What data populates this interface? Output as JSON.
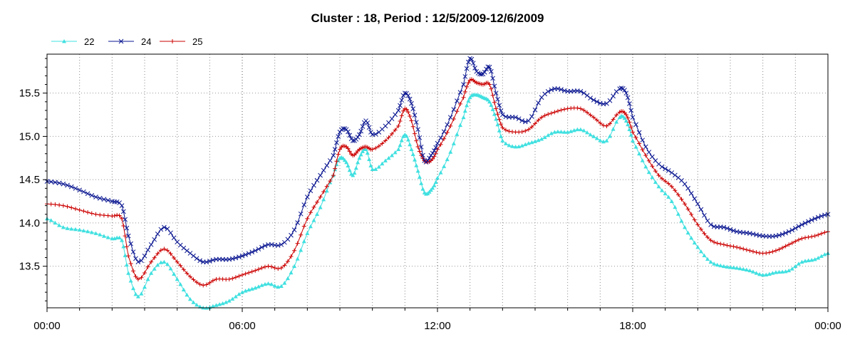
{
  "chart_data": {
    "type": "line",
    "title": "Cluster : 18, Period : 12/5/2009-12/6/2009",
    "xlabel": "",
    "ylabel": "",
    "x_ticks": [
      "00:00",
      "06:00",
      "12:00",
      "18:00",
      "00:00"
    ],
    "y_ticks": [
      "13.5",
      "14.0",
      "14.5",
      "15.0",
      "15.5"
    ],
    "xlim": [
      0,
      24
    ],
    "ylim": [
      13.02,
      15.95
    ],
    "grid": true,
    "legend_position": "top-left",
    "series": [
      {
        "name": "22",
        "color": "#40e0e0",
        "marker": "triangle",
        "x": [
          0,
          0.5,
          1,
          1.5,
          2,
          2.3,
          2.5,
          2.8,
          3.2,
          3.6,
          4,
          4.4,
          4.8,
          5.2,
          5.6,
          6,
          6.4,
          6.8,
          7.2,
          7.6,
          8,
          8.4,
          8.8,
          9,
          9.2,
          9.4,
          9.6,
          9.8,
          10,
          10.4,
          10.8,
          11,
          11.2,
          11.4,
          11.6,
          11.8,
          12,
          12.4,
          12.8,
          13,
          13.2,
          13.4,
          13.6,
          13.8,
          14,
          14.4,
          14.8,
          15.2,
          15.6,
          16,
          16.4,
          16.8,
          17.2,
          17.6,
          17.8,
          18,
          18.4,
          18.8,
          19.2,
          19.6,
          20,
          20.4,
          20.8,
          21.2,
          21.6,
          22,
          22.4,
          22.8,
          23.2,
          23.6,
          24
        ],
        "values": [
          14.05,
          13.95,
          13.92,
          13.88,
          13.82,
          13.8,
          13.42,
          13.15,
          13.42,
          13.55,
          13.35,
          13.12,
          13.02,
          13.05,
          13.1,
          13.2,
          13.25,
          13.3,
          13.27,
          13.5,
          13.88,
          14.18,
          14.55,
          14.75,
          14.7,
          14.55,
          14.75,
          14.85,
          14.62,
          14.72,
          14.85,
          15.02,
          14.85,
          14.6,
          14.35,
          14.38,
          14.52,
          14.82,
          15.22,
          15.45,
          15.48,
          15.45,
          15.4,
          15.2,
          14.95,
          14.88,
          14.92,
          14.97,
          15.05,
          15.05,
          15.08,
          15.0,
          14.95,
          15.22,
          15.18,
          14.95,
          14.65,
          14.42,
          14.25,
          13.95,
          13.72,
          13.55,
          13.5,
          13.48,
          13.45,
          13.4,
          13.43,
          13.45,
          13.55,
          13.58,
          13.65
        ]
      },
      {
        "name": "24",
        "color": "#0a1690",
        "marker": "cross",
        "x": [
          0,
          0.5,
          1,
          1.5,
          2,
          2.3,
          2.5,
          2.8,
          3.2,
          3.6,
          4,
          4.4,
          4.8,
          5.2,
          5.6,
          6,
          6.4,
          6.8,
          7.2,
          7.6,
          8,
          8.4,
          8.8,
          9,
          9.2,
          9.4,
          9.6,
          9.8,
          10,
          10.4,
          10.8,
          11,
          11.2,
          11.4,
          11.6,
          11.8,
          12,
          12.4,
          12.8,
          13,
          13.2,
          13.4,
          13.6,
          13.8,
          14,
          14.4,
          14.8,
          15.2,
          15.6,
          16,
          16.4,
          16.8,
          17.2,
          17.6,
          17.8,
          18,
          18.4,
          18.8,
          19.2,
          19.6,
          20,
          20.4,
          20.8,
          21.2,
          21.6,
          22,
          22.4,
          22.8,
          23.2,
          23.6,
          24
        ],
        "values": [
          14.48,
          14.45,
          14.38,
          14.3,
          14.25,
          14.2,
          13.85,
          13.55,
          13.75,
          13.95,
          13.78,
          13.65,
          13.55,
          13.58,
          13.58,
          13.62,
          13.68,
          13.75,
          13.75,
          13.92,
          14.3,
          14.55,
          14.78,
          15.05,
          15.08,
          14.95,
          15.02,
          15.18,
          15.02,
          15.12,
          15.3,
          15.5,
          15.38,
          15.08,
          14.72,
          14.78,
          14.92,
          15.22,
          15.6,
          15.9,
          15.75,
          15.72,
          15.8,
          15.5,
          15.25,
          15.22,
          15.18,
          15.45,
          15.55,
          15.52,
          15.52,
          15.42,
          15.38,
          15.55,
          15.5,
          15.22,
          14.88,
          14.68,
          14.58,
          14.45,
          14.22,
          13.98,
          13.95,
          13.9,
          13.88,
          13.85,
          13.85,
          13.9,
          13.98,
          14.05,
          14.1
        ]
      },
      {
        "name": "25",
        "color": "#cc0000",
        "marker": "plus",
        "x": [
          0,
          0.5,
          1,
          1.5,
          2,
          2.3,
          2.5,
          2.8,
          3.2,
          3.6,
          4,
          4.4,
          4.8,
          5.2,
          5.6,
          6,
          6.4,
          6.8,
          7.2,
          7.6,
          8,
          8.4,
          8.8,
          9,
          9.2,
          9.4,
          9.6,
          9.8,
          10,
          10.4,
          10.8,
          11,
          11.2,
          11.4,
          11.6,
          11.8,
          12,
          12.4,
          12.8,
          13,
          13.2,
          13.4,
          13.6,
          13.8,
          14,
          14.4,
          14.8,
          15.2,
          15.6,
          16,
          16.4,
          16.8,
          17.2,
          17.6,
          17.8,
          18,
          18.4,
          18.8,
          19.2,
          19.6,
          20,
          20.4,
          20.8,
          21.2,
          21.6,
          22,
          22.4,
          22.8,
          23.2,
          23.6,
          24
        ],
        "values": [
          14.22,
          14.2,
          14.15,
          14.1,
          14.08,
          14.05,
          13.62,
          13.35,
          13.55,
          13.7,
          13.55,
          13.38,
          13.28,
          13.35,
          13.35,
          13.4,
          13.45,
          13.5,
          13.48,
          13.68,
          14.05,
          14.3,
          14.55,
          14.85,
          14.88,
          14.78,
          14.85,
          14.88,
          14.85,
          14.95,
          15.12,
          15.32,
          15.18,
          14.88,
          14.72,
          14.72,
          14.85,
          15.12,
          15.45,
          15.65,
          15.62,
          15.6,
          15.6,
          15.32,
          15.1,
          15.05,
          15.08,
          15.22,
          15.28,
          15.32,
          15.32,
          15.22,
          15.12,
          15.28,
          15.25,
          15.05,
          14.78,
          14.55,
          14.42,
          14.22,
          13.98,
          13.8,
          13.75,
          13.72,
          13.68,
          13.65,
          13.68,
          13.75,
          13.82,
          13.85,
          13.9
        ]
      }
    ]
  }
}
